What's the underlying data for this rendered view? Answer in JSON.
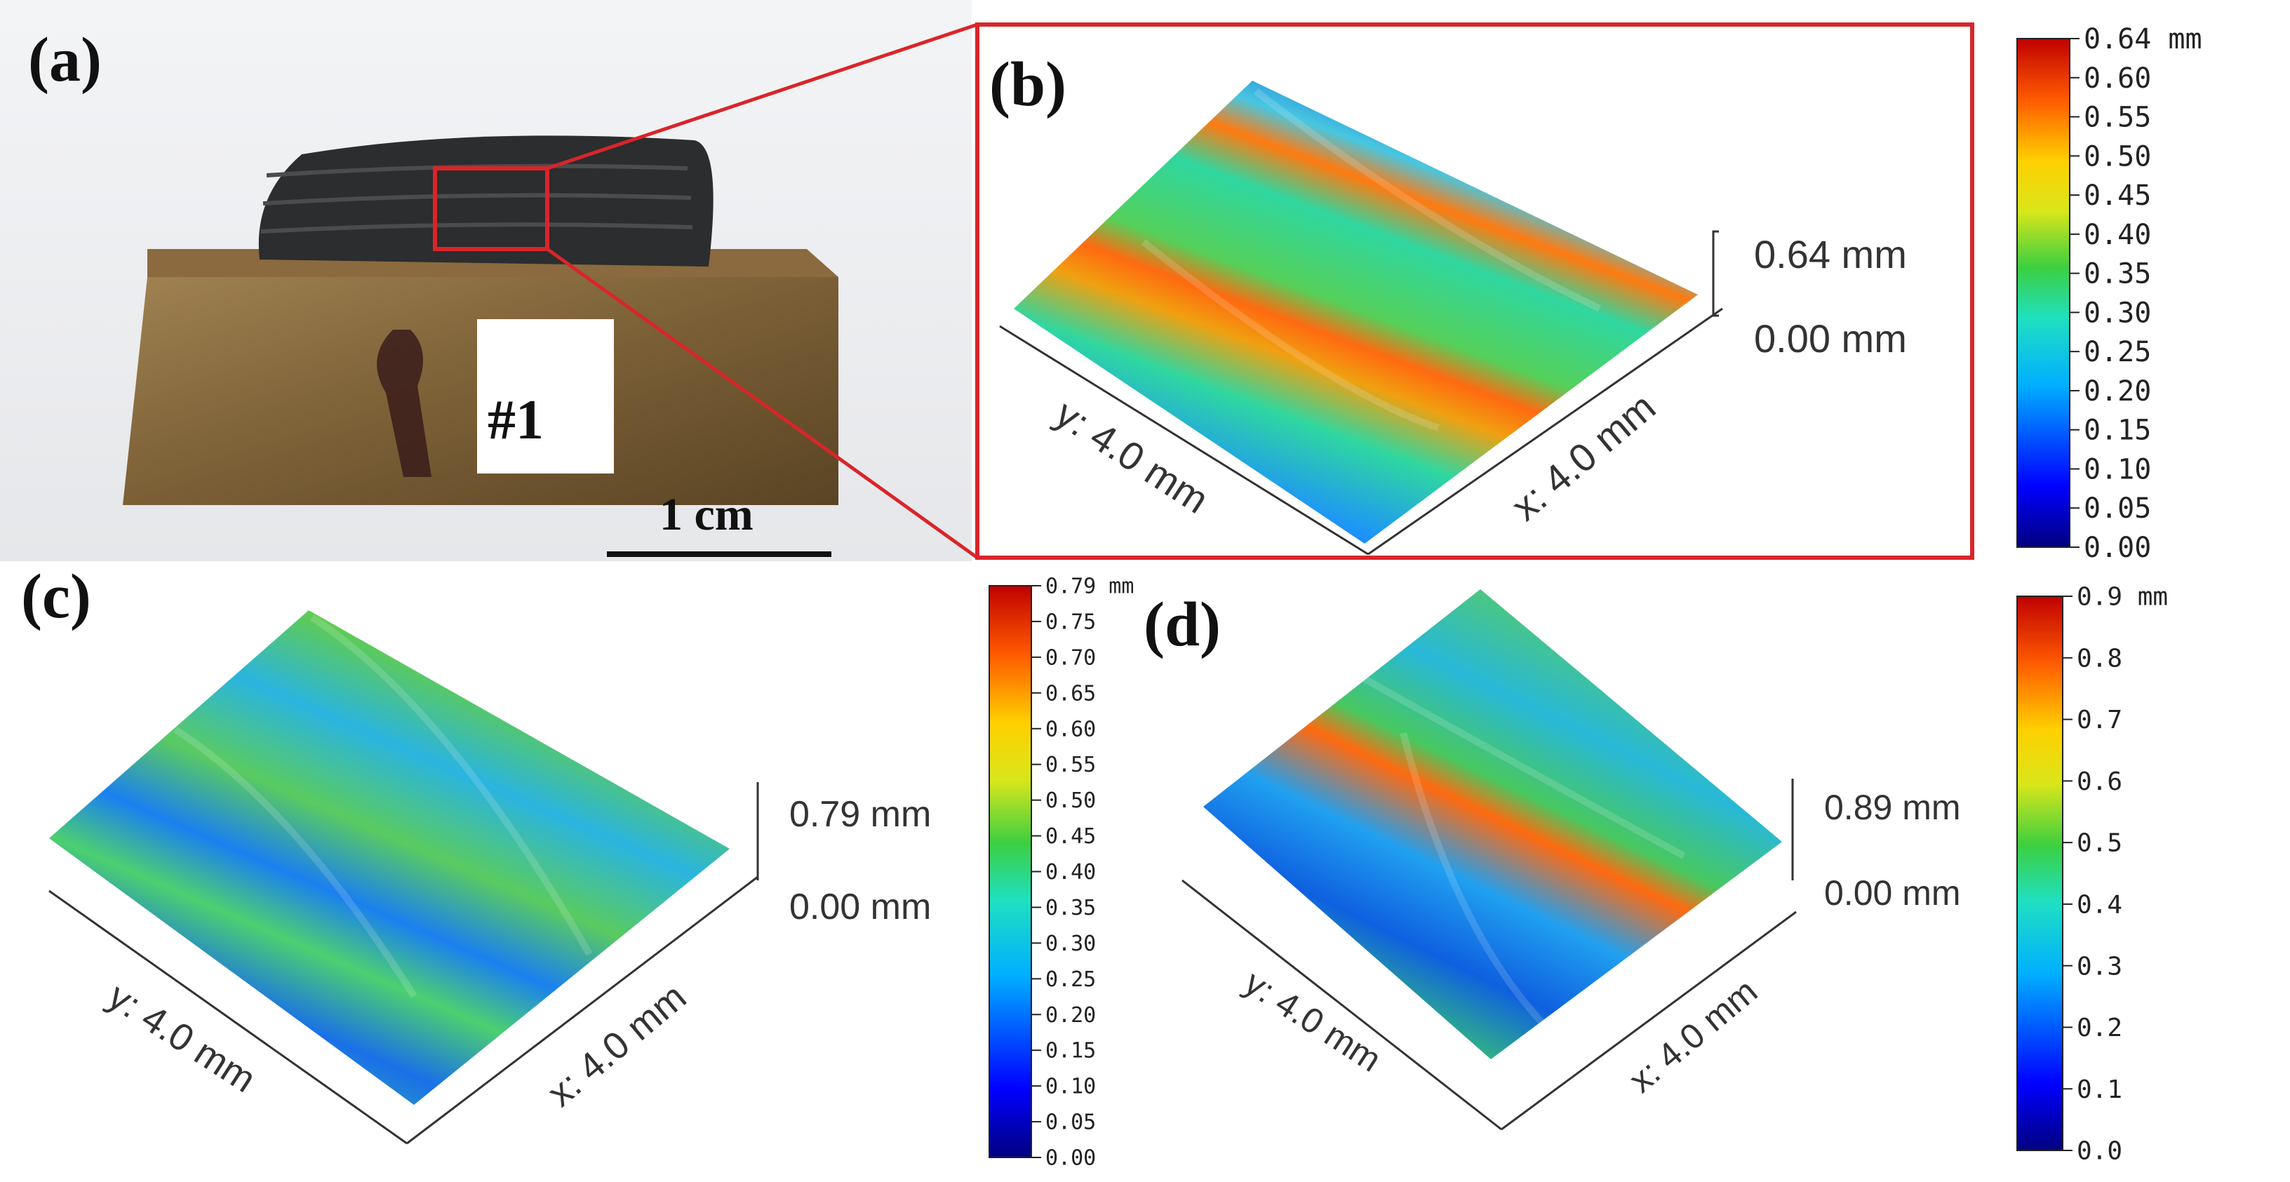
{
  "panels": {
    "a": {
      "label": "(a)",
      "sample_tag": "#1",
      "scalebar_label": "1 cm"
    },
    "b": {
      "label": "(b)",
      "z_top": "0.64 mm",
      "z_bottom": "0.00 mm",
      "axis_y": "y: 4.0 mm",
      "axis_x": "x: 4.0 mm",
      "colorbar": {
        "ticks": [
          "0.64 mm",
          "0.60",
          "0.55",
          "0.50",
          "0.45",
          "0.40",
          "0.35",
          "0.30",
          "0.25",
          "0.20",
          "0.15",
          "0.10",
          "0.05",
          "0.00"
        ],
        "max": 0.64
      }
    },
    "c": {
      "label": "(c)",
      "z_top": "0.79 mm",
      "z_bottom": "0.00 mm",
      "axis_y": "y: 4.0 mm",
      "axis_x": "x: 4.0 mm",
      "colorbar": {
        "ticks": [
          "0.79 mm",
          "0.75",
          "0.70",
          "0.65",
          "0.60",
          "0.55",
          "0.50",
          "0.45",
          "0.40",
          "0.35",
          "0.30",
          "0.25",
          "0.20",
          "0.15",
          "0.10",
          "0.05",
          "0.00"
        ],
        "max": 0.79
      }
    },
    "d": {
      "label": "(d)",
      "z_top": "0.89 mm",
      "z_bottom": "0.00 mm",
      "axis_y": "y: 4.0 mm",
      "axis_x": "x: 4.0 mm",
      "colorbar": {
        "ticks": [
          "0.9 mm",
          "0.8",
          "0.7",
          "0.6",
          "0.5",
          "0.4",
          "0.3",
          "0.2",
          "0.1",
          "0.0"
        ],
        "max": 0.9
      }
    }
  },
  "colors": {
    "zoom_box": "#d9252a",
    "cmap": [
      "#00007f",
      "#0000ff",
      "#00a0ff",
      "#00e0d0",
      "#2ccf5a",
      "#b8e61a",
      "#ffd000",
      "#ff7a00",
      "#e01a10",
      "#7f0000"
    ]
  }
}
